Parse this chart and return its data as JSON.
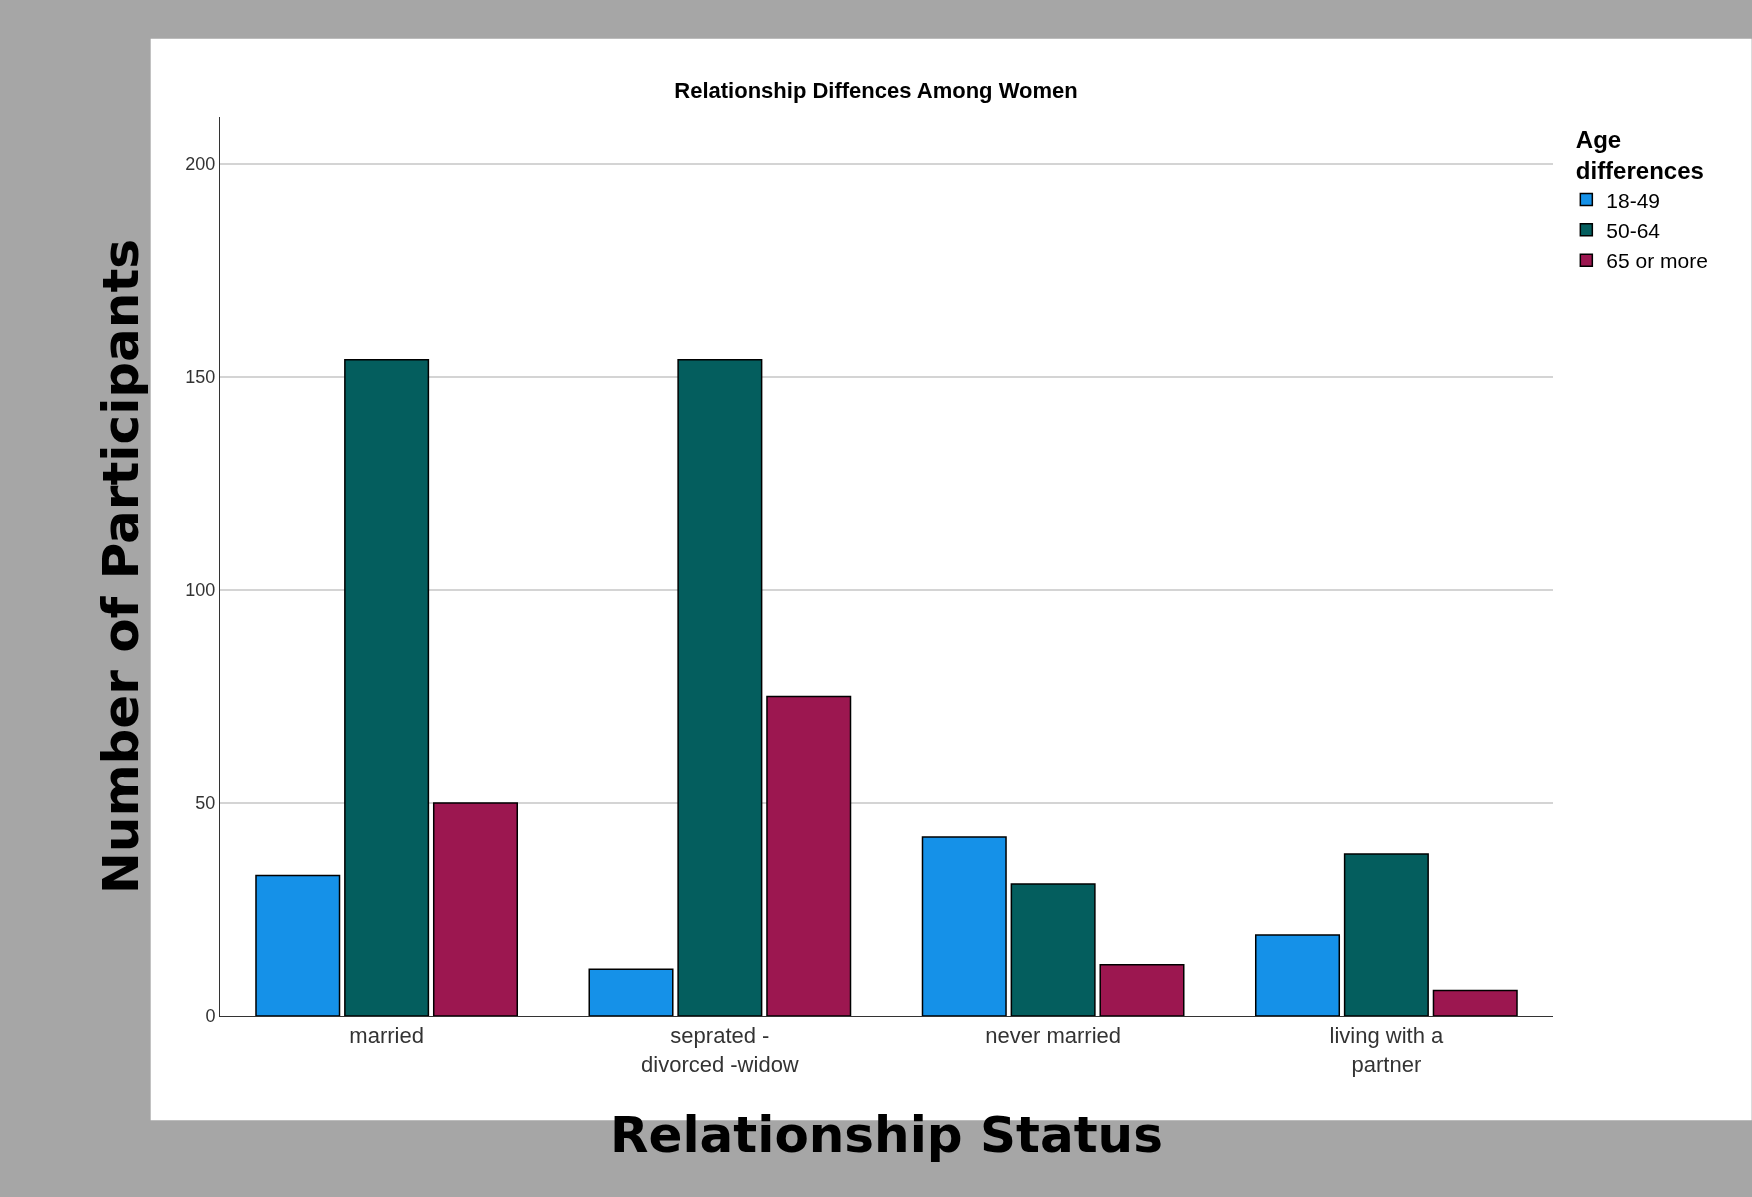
{
  "chart_data": {
    "type": "bar",
    "title": "Relationship Diffences Among Women",
    "xlabel": "Relationship Status",
    "ylabel": "Number of Participants",
    "legend_title": "Age differences",
    "categories": [
      "married",
      "seprated -\ndivorced -widow",
      "never married",
      "living with a\npartner"
    ],
    "series": [
      {
        "name": "18-49",
        "color": "#1591e8",
        "values": [
          33,
          11,
          42,
          19
        ]
      },
      {
        "name": "50-64",
        "color": "#045e5e",
        "values": [
          154,
          154,
          31,
          38
        ]
      },
      {
        "name": "65 or more",
        "color": "#9c1750",
        "values": [
          50,
          75,
          12,
          6
        ]
      }
    ],
    "ylim": [
      0,
      211
    ],
    "yticks": [
      0,
      50,
      100,
      150,
      200
    ],
    "grid": "y",
    "legend": "top right"
  }
}
